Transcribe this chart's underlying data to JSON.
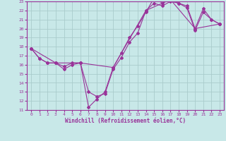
{
  "xlabel": "Windchill (Refroidissement éolien,°C)",
  "bg_color": "#c8e8e8",
  "grid_color": "#aacccc",
  "line_color": "#993399",
  "xlim": [
    -0.5,
    23.5
  ],
  "ylim": [
    11,
    23
  ],
  "xticks": [
    0,
    1,
    2,
    3,
    4,
    5,
    6,
    7,
    8,
    9,
    10,
    11,
    12,
    13,
    14,
    15,
    16,
    17,
    18,
    19,
    20,
    21,
    22,
    23
  ],
  "yticks": [
    11,
    12,
    13,
    14,
    15,
    16,
    17,
    18,
    19,
    20,
    21,
    22,
    23
  ],
  "line1_x": [
    0,
    1,
    2,
    3,
    4,
    5,
    6,
    7,
    8,
    9,
    10,
    11,
    12,
    13,
    14,
    15,
    16,
    17,
    18,
    19,
    20,
    21,
    22,
    23
  ],
  "line1_y": [
    17.8,
    16.7,
    16.2,
    16.2,
    15.8,
    16.2,
    16.2,
    11.3,
    12.2,
    13.0,
    15.7,
    17.3,
    19.0,
    20.3,
    21.8,
    23.4,
    22.8,
    23.2,
    22.8,
    22.5,
    20.0,
    22.2,
    21.0,
    20.5
  ],
  "line2_x": [
    0,
    1,
    2,
    3,
    4,
    5,
    6,
    7,
    8,
    9,
    10,
    11,
    12,
    13,
    14,
    15,
    16,
    17,
    18,
    19,
    20,
    21,
    22,
    23
  ],
  "line2_y": [
    17.8,
    16.7,
    16.2,
    16.2,
    15.5,
    16.0,
    16.2,
    13.0,
    12.5,
    12.8,
    15.5,
    16.8,
    18.5,
    19.5,
    22.0,
    22.8,
    22.5,
    23.0,
    22.8,
    22.3,
    19.8,
    21.8,
    21.0,
    20.5
  ],
  "line3_x": [
    0,
    3,
    6,
    10,
    14,
    17,
    20,
    23
  ],
  "line3_y": [
    17.8,
    16.2,
    16.2,
    15.7,
    22.0,
    23.2,
    20.0,
    20.5
  ],
  "xlabel_fontsize": 5.5,
  "tick_fontsize": 4.5
}
